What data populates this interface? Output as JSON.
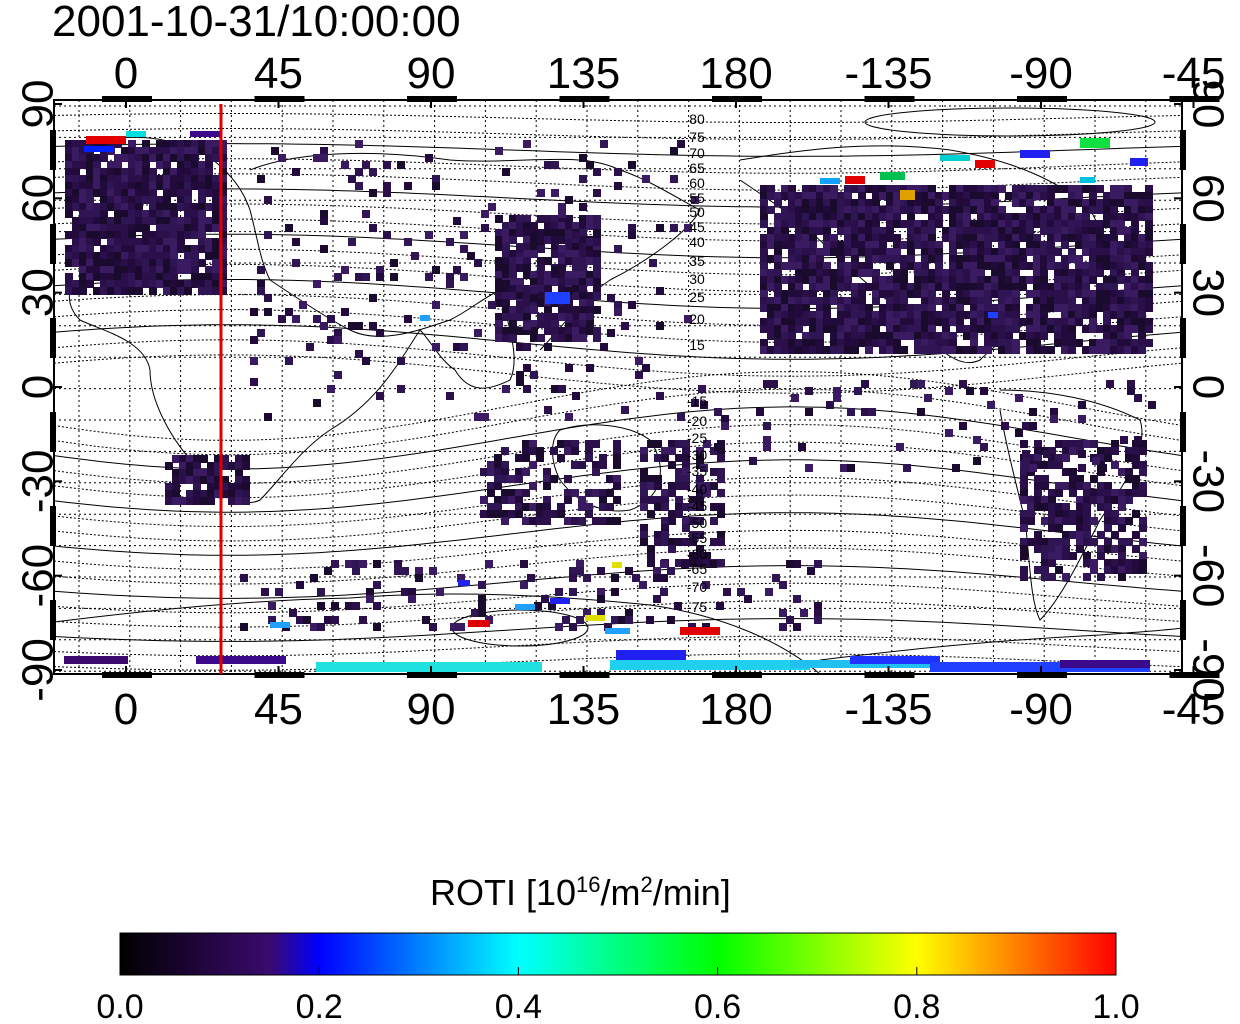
{
  "title": "2001-10-31/10:00:00",
  "map": {
    "lon_ticks": [
      "0",
      "45",
      "90",
      "135",
      "180",
      "-135",
      "-90",
      "-45"
    ],
    "lat_ticks_left": [
      "90",
      "60",
      "30",
      "0",
      "-30",
      "-60",
      "-90"
    ],
    "lat_ticks_right": [
      "90",
      "60",
      "30",
      "0",
      "-30",
      "-60",
      "-90"
    ],
    "contour_labels_north": [
      "80",
      "75",
      "70",
      "65",
      "60",
      "55",
      "50",
      "45",
      "40",
      "35",
      "30",
      "25",
      "20",
      "15"
    ],
    "contour_labels_south": [
      "-15",
      "-20",
      "-25",
      "-30",
      "-35",
      "-40",
      "-45",
      "-50",
      "-55",
      "-60",
      "-65",
      "-70",
      "-75"
    ],
    "terminator_longitude": 30,
    "terminator_color": "#e00000"
  },
  "colorbar": {
    "label_main": "ROTI  [10",
    "label_sup1": "16",
    "label_mid": "/m",
    "label_sup2": "2",
    "label_end": "/min]",
    "ticks": [
      "0.0",
      "0.2",
      "0.4",
      "0.6",
      "0.8",
      "1.0"
    ],
    "range": [
      0.0,
      1.0
    ],
    "colors": [
      "#000000",
      "#3a0a6e",
      "#0000ff",
      "#00ffff",
      "#00ff00",
      "#ffff00",
      "#ff0000"
    ]
  }
}
